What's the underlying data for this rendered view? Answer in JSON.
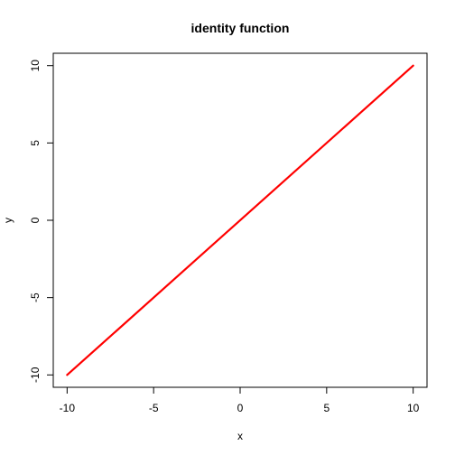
{
  "chart_data": {
    "type": "line",
    "title": "identity function",
    "xlabel": "x",
    "ylabel": "y",
    "xlim": [
      -10.8,
      10.8
    ],
    "ylim": [
      -10.8,
      10.8
    ],
    "x_ticks": [
      -10,
      -5,
      0,
      5,
      10
    ],
    "y_ticks": [
      -10,
      -5,
      0,
      5,
      10
    ],
    "x_tick_labels": [
      "-10",
      "-5",
      "0",
      "5",
      "10"
    ],
    "y_tick_labels": [
      "-10",
      "-5",
      "0",
      "5",
      "10"
    ],
    "grid": false,
    "series": [
      {
        "color": "#ff0000",
        "x": [
          -10,
          10
        ],
        "y": [
          -10,
          10
        ]
      }
    ]
  }
}
